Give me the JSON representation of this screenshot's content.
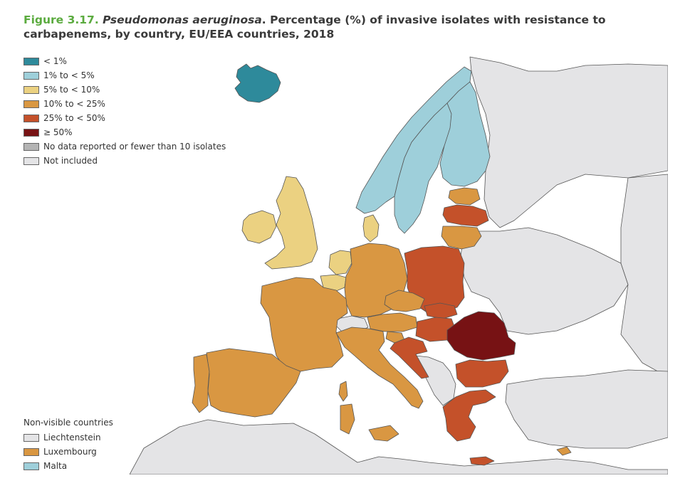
{
  "title": {
    "figure": "Figure 3.17.",
    "species": "Pseudomonas aeruginosa",
    "rest": ". Percentage (%) of invasive isolates with resistance to carbapenems, by country, EU/EEA countries, 2018"
  },
  "legend": [
    {
      "label": "< 1%",
      "color": "#2e8a9b"
    },
    {
      "label": "1% to < 5%",
      "color": "#9ecfda"
    },
    {
      "label": "5% to < 10%",
      "color": "#ebd181"
    },
    {
      "label": "10% to < 25%",
      "color": "#d99742"
    },
    {
      "label": "25% to < 50%",
      "color": "#c4512a"
    },
    {
      "label": "≥ 50%",
      "color": "#771214"
    },
    {
      "label": "No data reported or fewer than 10 isolates",
      "color": "#b4b4b4"
    },
    {
      "label": "Not included",
      "color": "#e4e4e6"
    }
  ],
  "nonvisible": {
    "header": "Non-visible countries",
    "items": [
      {
        "label": "Liechtenstein",
        "color": "#e4e4e6"
      },
      {
        "label": "Luxembourg",
        "color": "#d99742"
      },
      {
        "label": "Malta",
        "color": "#9ecfda"
      }
    ]
  },
  "colors": {
    "sea": "#ffffff",
    "not_included": "#e4e4e6",
    "border": "#555555"
  }
}
